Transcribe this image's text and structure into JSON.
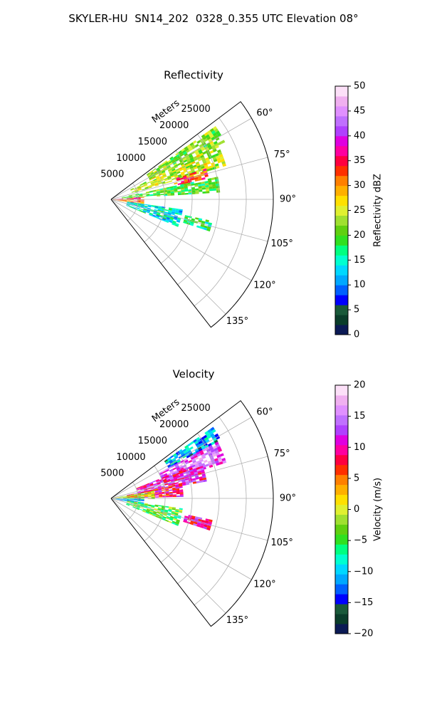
{
  "figure": {
    "suptitle": "SKYLER-HU  SN14_202  0328_0.355 UTC Elevation 08°"
  },
  "chart_data": [
    {
      "type": "heatmap",
      "projection": "polar-sector",
      "title": "Reflectivity",
      "radial_label": "Meters",
      "radial_ticks": [
        5000,
        10000,
        15000,
        20000,
        25000
      ],
      "radial_tick_labels": [
        "5000",
        "10000",
        "15000",
        "20000",
        "25000"
      ],
      "r_max_m": 30000,
      "azimuth_range_deg": [
        53,
        142
      ],
      "azimuth_ticks_deg": [
        60,
        75,
        90,
        105,
        120,
        135
      ],
      "azimuth_tick_labels": [
        "60°",
        "75°",
        "90°",
        "105°",
        "120°",
        "135°"
      ],
      "grid": true,
      "colorbar": {
        "label": "Reflectivity dBZ",
        "range": [
          0,
          50
        ],
        "ticks": [
          0,
          5,
          10,
          15,
          20,
          25,
          30,
          35,
          40,
          45,
          50
        ],
        "tick_labels": [
          "0",
          "5",
          "10",
          "15",
          "20",
          "25",
          "30",
          "35",
          "40",
          "45",
          "50"
        ],
        "colors": [
          "#0b1a55",
          "#0a3d2a",
          "#1a5a3a",
          "#0000ff",
          "#0060ff",
          "#00a8ff",
          "#00d8ff",
          "#00ffd0",
          "#00ff80",
          "#30e020",
          "#60d010",
          "#a0e030",
          "#e0f030",
          "#ffe000",
          "#ffb000",
          "#ff8000",
          "#ff3000",
          "#ff0040",
          "#ff00a0",
          "#e000e0",
          "#b040ff",
          "#c070ff",
          "#e090ff",
          "#f0b0f0",
          "#fce0f8"
        ]
      },
      "echo_regions": [
        {
          "az": [
            55,
            63
          ],
          "r": [
            8000,
            23000
          ],
          "value": 22
        },
        {
          "az": [
            63,
            73
          ],
          "r": [
            4000,
            22000
          ],
          "value": 24
        },
        {
          "az": [
            72,
            78
          ],
          "r": [
            12000,
            18000
          ],
          "value": 33
        },
        {
          "az": [
            78,
            86
          ],
          "r": [
            2000,
            20000
          ],
          "value": 20
        },
        {
          "az": [
            86,
            92
          ],
          "r": [
            0,
            6000
          ],
          "value": 35
        },
        {
          "az": [
            92,
            100
          ],
          "r": [
            0,
            6000
          ],
          "value": 30
        },
        {
          "az": [
            98,
            112
          ],
          "r": [
            3000,
            13000
          ],
          "value": 14
        },
        {
          "az": [
            102,
            108
          ],
          "r": [
            14000,
            19000
          ],
          "value": 18
        }
      ]
    },
    {
      "type": "heatmap",
      "projection": "polar-sector",
      "title": "Velocity",
      "radial_label": "Meters",
      "radial_ticks": [
        5000,
        10000,
        15000,
        20000,
        25000
      ],
      "radial_tick_labels": [
        "5000",
        "10000",
        "15000",
        "20000",
        "25000"
      ],
      "r_max_m": 30000,
      "azimuth_range_deg": [
        53,
        142
      ],
      "azimuth_ticks_deg": [
        60,
        75,
        90,
        105,
        120,
        135
      ],
      "azimuth_tick_labels": [
        "60°",
        "75°",
        "90°",
        "105°",
        "120°",
        "135°"
      ],
      "grid": true,
      "colorbar": {
        "label": "Velocity (m/s)",
        "range": [
          -20,
          20
        ],
        "ticks": [
          -20,
          -15,
          -10,
          -5,
          0,
          5,
          10,
          15,
          20
        ],
        "tick_labels": [
          "−20",
          "−15",
          "−10",
          "−5",
          "0",
          "5",
          "10",
          "15",
          "20"
        ],
        "colors": [
          "#0b1a55",
          "#0a3d2a",
          "#1a5a3a",
          "#0000ff",
          "#0060ff",
          "#00a8ff",
          "#00d8ff",
          "#00ffd0",
          "#00ff80",
          "#30e020",
          "#60d010",
          "#a0e030",
          "#e0f030",
          "#ffe000",
          "#ffb000",
          "#ff8000",
          "#ff3000",
          "#ff0040",
          "#ff00a0",
          "#e000e0",
          "#b040ff",
          "#c070ff",
          "#e090ff",
          "#f0b0f0",
          "#fce0f8"
        ]
      },
      "echo_regions": [
        {
          "az": [
            55,
            62
          ],
          "r": [
            12000,
            23000
          ],
          "value": -11
        },
        {
          "az": [
            62,
            72
          ],
          "r": [
            10000,
            22000
          ],
          "value": 14
        },
        {
          "az": [
            68,
            80
          ],
          "r": [
            5000,
            18000
          ],
          "value": 11
        },
        {
          "az": [
            78,
            88
          ],
          "r": [
            3000,
            13000
          ],
          "value": 9
        },
        {
          "az": [
            80,
            90
          ],
          "r": [
            0,
            8000
          ],
          "value": 0
        },
        {
          "az": [
            90,
            100
          ],
          "r": [
            0,
            6000
          ],
          "value": -10
        },
        {
          "az": [
            98,
            112
          ],
          "r": [
            3000,
            13000
          ],
          "value": -4
        },
        {
          "az": [
            102,
            108
          ],
          "r": [
            14000,
            19000
          ],
          "value": 10
        }
      ]
    }
  ]
}
